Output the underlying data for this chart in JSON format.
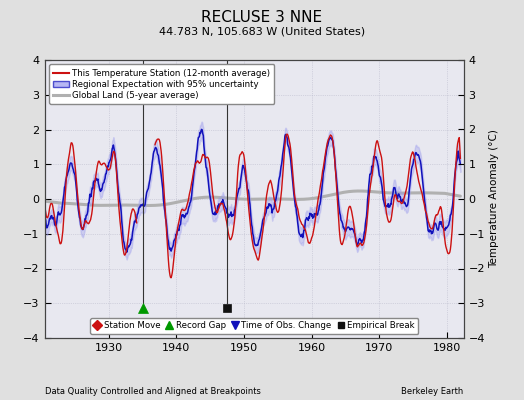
{
  "title": "RECLUSE 3 NNE",
  "subtitle": "44.783 N, 105.683 W (United States)",
  "xlabel_left": "Data Quality Controlled and Aligned at Breakpoints",
  "xlabel_right": "Berkeley Earth",
  "ylabel": "Temperature Anomaly (°C)",
  "xlim": [
    1920.5,
    1982.5
  ],
  "ylim": [
    -4,
    4
  ],
  "yticks": [
    -4,
    -3,
    -2,
    -1,
    0,
    1,
    2,
    3,
    4
  ],
  "xticks": [
    1930,
    1940,
    1950,
    1960,
    1970,
    1980
  ],
  "background_color": "#e0e0e0",
  "plot_bg_color": "#e8e8f0",
  "record_gap_x": 1935.0,
  "record_gap_y": -3.15,
  "empirical_break_x": 1947.5,
  "empirical_break_y": -3.15,
  "seed": 42
}
